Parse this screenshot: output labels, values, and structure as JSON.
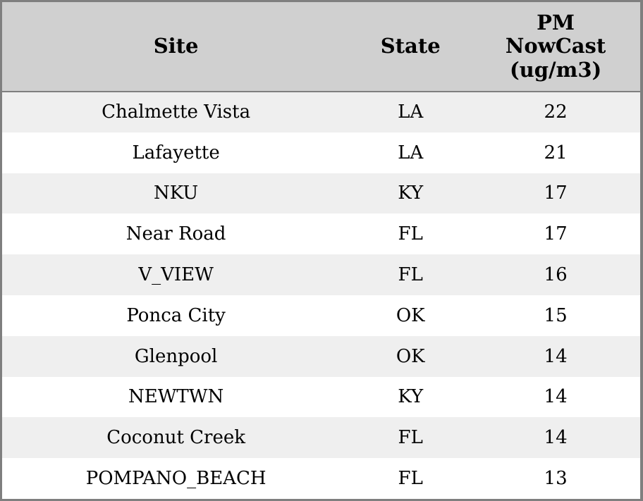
{
  "colors": {
    "header_background": "#d0d0d0",
    "stripe_row_background": "#efefef",
    "plain_row_background": "#ffffff",
    "border": "#7f7f7f",
    "text": "#000000"
  },
  "table": {
    "columns": [
      {
        "label": "Site"
      },
      {
        "label": "State"
      },
      {
        "label": "PM\nNowCast\n(ug/m3)"
      }
    ],
    "rows": [
      {
        "site": "Chalmette Vista",
        "state": "LA",
        "pm_nowcast": "22"
      },
      {
        "site": "Lafayette",
        "state": "LA",
        "pm_nowcast": "21"
      },
      {
        "site": "NKU",
        "state": "KY",
        "pm_nowcast": "17"
      },
      {
        "site": "Near Road",
        "state": "FL",
        "pm_nowcast": "17"
      },
      {
        "site": "V_VIEW",
        "state": "FL",
        "pm_nowcast": "16"
      },
      {
        "site": "Ponca City",
        "state": "OK",
        "pm_nowcast": "15"
      },
      {
        "site": "Glenpool",
        "state": "OK",
        "pm_nowcast": "14"
      },
      {
        "site": "NEWTWN",
        "state": "KY",
        "pm_nowcast": "14"
      },
      {
        "site": "Coconut Creek",
        "state": "FL",
        "pm_nowcast": "14"
      },
      {
        "site": "POMPANO_BEACH",
        "state": "FL",
        "pm_nowcast": "13"
      }
    ]
  },
  "chart_data": {
    "type": "table",
    "title": "",
    "columns": [
      "Site",
      "State",
      "PM NowCast (ug/m3)"
    ],
    "rows": [
      [
        "Chalmette Vista",
        "LA",
        22
      ],
      [
        "Lafayette",
        "LA",
        21
      ],
      [
        "NKU",
        "KY",
        17
      ],
      [
        "Near Road",
        "FL",
        17
      ],
      [
        "V_VIEW",
        "FL",
        16
      ],
      [
        "Ponca City",
        "OK",
        15
      ],
      [
        "Glenpool",
        "OK",
        14
      ],
      [
        "NEWTWN",
        "KY",
        14
      ],
      [
        "Coconut Creek",
        "FL",
        14
      ],
      [
        "POMPANO_BEACH",
        "FL",
        13
      ]
    ]
  }
}
